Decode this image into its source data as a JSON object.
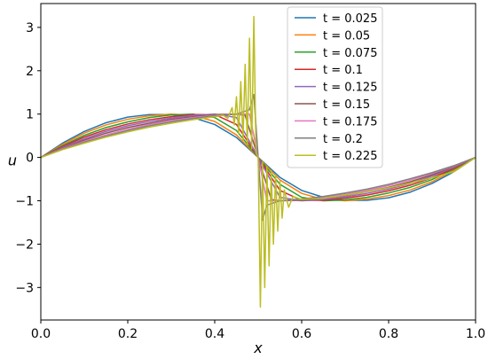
{
  "chart_data": {
    "type": "line",
    "title": "",
    "xlabel": "x",
    "ylabel": "u",
    "xlim": [
      0.0,
      1.0
    ],
    "ylim": [
      -3.75,
      3.55
    ],
    "grid": false,
    "legend_position": "top-right",
    "x_ticks": [
      0.0,
      0.2,
      0.4,
      0.6,
      0.8,
      1.0
    ],
    "x_tick_labels": [
      "0.0",
      "0.2",
      "0.4",
      "0.6",
      "0.8",
      "1.0"
    ],
    "y_ticks": [
      3,
      2,
      1,
      0,
      -1,
      -2,
      -3
    ],
    "y_tick_labels": [
      "3",
      "2",
      "1",
      "0",
      "−1",
      "−2",
      "−3"
    ],
    "series": [
      {
        "name": "t = 0.025",
        "color": "#1f77b4",
        "x": [
          0.0,
          0.05,
          0.1,
          0.15,
          0.2,
          0.25,
          0.3,
          0.35,
          0.4,
          0.45,
          0.5,
          0.55,
          0.6,
          0.65,
          0.7,
          0.75,
          0.8,
          0.85,
          0.9,
          0.95,
          1.0
        ],
        "y": [
          0.0,
          0.33,
          0.6,
          0.8,
          0.93,
          0.99,
          0.99,
          0.92,
          0.76,
          0.46,
          0.0,
          -0.46,
          -0.76,
          -0.92,
          -0.99,
          -0.99,
          -0.93,
          -0.8,
          -0.6,
          -0.33,
          0.0
        ]
      },
      {
        "name": "t = 0.05",
        "color": "#ff7f0e",
        "x": [
          0.0,
          0.05,
          0.1,
          0.15,
          0.2,
          0.25,
          0.3,
          0.35,
          0.4,
          0.45,
          0.5,
          0.55,
          0.6,
          0.65,
          0.7,
          0.75,
          0.8,
          0.85,
          0.9,
          0.95,
          1.0
        ],
        "y": [
          0.0,
          0.3,
          0.56,
          0.75,
          0.88,
          0.96,
          1.0,
          0.97,
          0.83,
          0.52,
          0.0,
          -0.52,
          -0.83,
          -0.97,
          -1.0,
          -0.96,
          -0.88,
          -0.75,
          -0.56,
          -0.3,
          0.0
        ]
      },
      {
        "name": "t = 0.075",
        "color": "#2ca02c",
        "x": [
          0.0,
          0.05,
          0.1,
          0.15,
          0.2,
          0.25,
          0.3,
          0.35,
          0.4,
          0.45,
          0.5,
          0.55,
          0.6,
          0.65,
          0.7,
          0.75,
          0.8,
          0.85,
          0.9,
          0.95,
          1.0
        ],
        "y": [
          0.0,
          0.27,
          0.51,
          0.69,
          0.82,
          0.92,
          0.98,
          1.0,
          0.92,
          0.62,
          0.0,
          -0.62,
          -0.92,
          -1.0,
          -0.98,
          -0.92,
          -0.82,
          -0.69,
          -0.51,
          -0.27,
          0.0
        ]
      },
      {
        "name": "t = 0.1",
        "color": "#d62728",
        "x": [
          0.0,
          0.05,
          0.1,
          0.15,
          0.2,
          0.25,
          0.3,
          0.35,
          0.4,
          0.45,
          0.5,
          0.55,
          0.6,
          0.65,
          0.7,
          0.75,
          0.8,
          0.85,
          0.9,
          0.95,
          1.0
        ],
        "y": [
          0.0,
          0.25,
          0.47,
          0.64,
          0.77,
          0.87,
          0.94,
          0.99,
          0.99,
          0.76,
          0.0,
          -0.76,
          -0.99,
          -0.99,
          -0.94,
          -0.87,
          -0.77,
          -0.64,
          -0.47,
          -0.25,
          0.0
        ]
      },
      {
        "name": "t = 0.125",
        "color": "#9467bd",
        "x": [
          0.0,
          0.05,
          0.1,
          0.15,
          0.2,
          0.25,
          0.3,
          0.35,
          0.4,
          0.45,
          0.5,
          0.55,
          0.6,
          0.65,
          0.7,
          0.75,
          0.8,
          0.85,
          0.9,
          0.95,
          1.0
        ],
        "y": [
          0.0,
          0.23,
          0.43,
          0.6,
          0.73,
          0.83,
          0.91,
          0.97,
          1.0,
          0.92,
          0.0,
          -0.92,
          -1.0,
          -0.97,
          -0.91,
          -0.83,
          -0.73,
          -0.6,
          -0.43,
          -0.23,
          0.0
        ]
      },
      {
        "name": "t = 0.15",
        "color": "#8c564b",
        "x": [
          0.0,
          0.05,
          0.1,
          0.15,
          0.2,
          0.25,
          0.3,
          0.35,
          0.4,
          0.45,
          0.47,
          0.5,
          0.53,
          0.55,
          0.6,
          0.65,
          0.7,
          0.75,
          0.8,
          0.85,
          0.9,
          0.95,
          1.0
        ],
        "y": [
          0.0,
          0.21,
          0.4,
          0.56,
          0.69,
          0.79,
          0.88,
          0.94,
          0.99,
          1.0,
          0.97,
          0.0,
          -0.97,
          -1.0,
          -0.99,
          -0.94,
          -0.88,
          -0.79,
          -0.69,
          -0.56,
          -0.4,
          -0.21,
          0.0
        ]
      },
      {
        "name": "t = 0.175",
        "color": "#e377c2",
        "x": [
          0.0,
          0.05,
          0.1,
          0.15,
          0.2,
          0.25,
          0.3,
          0.35,
          0.4,
          0.45,
          0.48,
          0.5,
          0.52,
          0.55,
          0.6,
          0.65,
          0.7,
          0.75,
          0.8,
          0.85,
          0.9,
          0.95,
          1.0
        ],
        "y": [
          0.0,
          0.2,
          0.37,
          0.52,
          0.65,
          0.76,
          0.85,
          0.92,
          0.97,
          1.0,
          1.0,
          0.0,
          -1.0,
          -1.0,
          -0.97,
          -0.92,
          -0.85,
          -0.76,
          -0.65,
          -0.52,
          -0.37,
          -0.2,
          0.0
        ]
      },
      {
        "name": "t = 0.2",
        "color": "#7f7f7f",
        "x": [
          0.0,
          0.05,
          0.1,
          0.15,
          0.2,
          0.25,
          0.3,
          0.35,
          0.4,
          0.45,
          0.48,
          0.49,
          0.5,
          0.51,
          0.52,
          0.55,
          0.6,
          0.65,
          0.7,
          0.75,
          0.8,
          0.85,
          0.9,
          0.95,
          1.0
        ],
        "y": [
          0.0,
          0.19,
          0.35,
          0.49,
          0.62,
          0.73,
          0.82,
          0.9,
          0.96,
          1.0,
          1.1,
          1.45,
          0.0,
          -1.45,
          -1.1,
          -1.0,
          -0.96,
          -0.9,
          -0.82,
          -0.73,
          -0.62,
          -0.49,
          -0.35,
          -0.19,
          0.0
        ]
      },
      {
        "name": "t = 0.225",
        "color": "#bcbd22",
        "x": [
          0.0,
          0.05,
          0.1,
          0.15,
          0.2,
          0.25,
          0.3,
          0.35,
          0.4,
          0.42,
          0.43,
          0.44,
          0.445,
          0.45,
          0.455,
          0.46,
          0.465,
          0.47,
          0.475,
          0.48,
          0.485,
          0.49,
          0.495,
          0.5,
          0.505,
          0.51,
          0.515,
          0.52,
          0.525,
          0.53,
          0.535,
          0.54,
          0.545,
          0.55,
          0.555,
          0.56,
          0.57,
          0.58,
          0.6,
          0.65,
          0.7,
          0.75,
          0.8,
          0.85,
          0.9,
          0.95,
          1.0
        ],
        "y": [
          0.0,
          0.18,
          0.33,
          0.47,
          0.59,
          0.7,
          0.79,
          0.87,
          0.94,
          0.97,
          0.9,
          1.15,
          0.75,
          1.4,
          0.55,
          1.75,
          0.4,
          2.15,
          0.3,
          2.75,
          0.2,
          3.25,
          0.1,
          0.0,
          -3.45,
          -0.1,
          -3.0,
          -0.2,
          -2.5,
          -0.3,
          -2.0,
          -0.4,
          -1.7,
          -0.55,
          -1.4,
          -0.75,
          -1.15,
          -0.9,
          -0.97,
          -0.94,
          -0.87,
          -0.79,
          -0.7,
          -0.59,
          -0.47,
          -0.33,
          0.0
        ]
      }
    ]
  }
}
